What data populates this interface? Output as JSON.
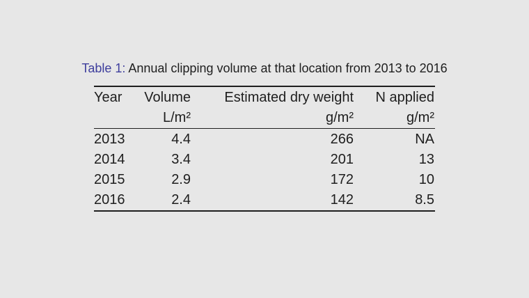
{
  "caption": {
    "label": "Table 1:",
    "text": "Annual clipping volume at that location from 2013 to 2016"
  },
  "table": {
    "header": [
      "Year",
      "Volume",
      "Estimated dry weight",
      "N applied"
    ],
    "units": [
      "L/m²",
      "g/m²",
      "g/m²"
    ],
    "rows": [
      [
        2013,
        4.4,
        266,
        "NA"
      ],
      [
        2014,
        3.4,
        201,
        13
      ],
      [
        2015,
        2.9,
        172,
        10
      ],
      [
        2016,
        2.4,
        142,
        8.5
      ]
    ]
  }
}
